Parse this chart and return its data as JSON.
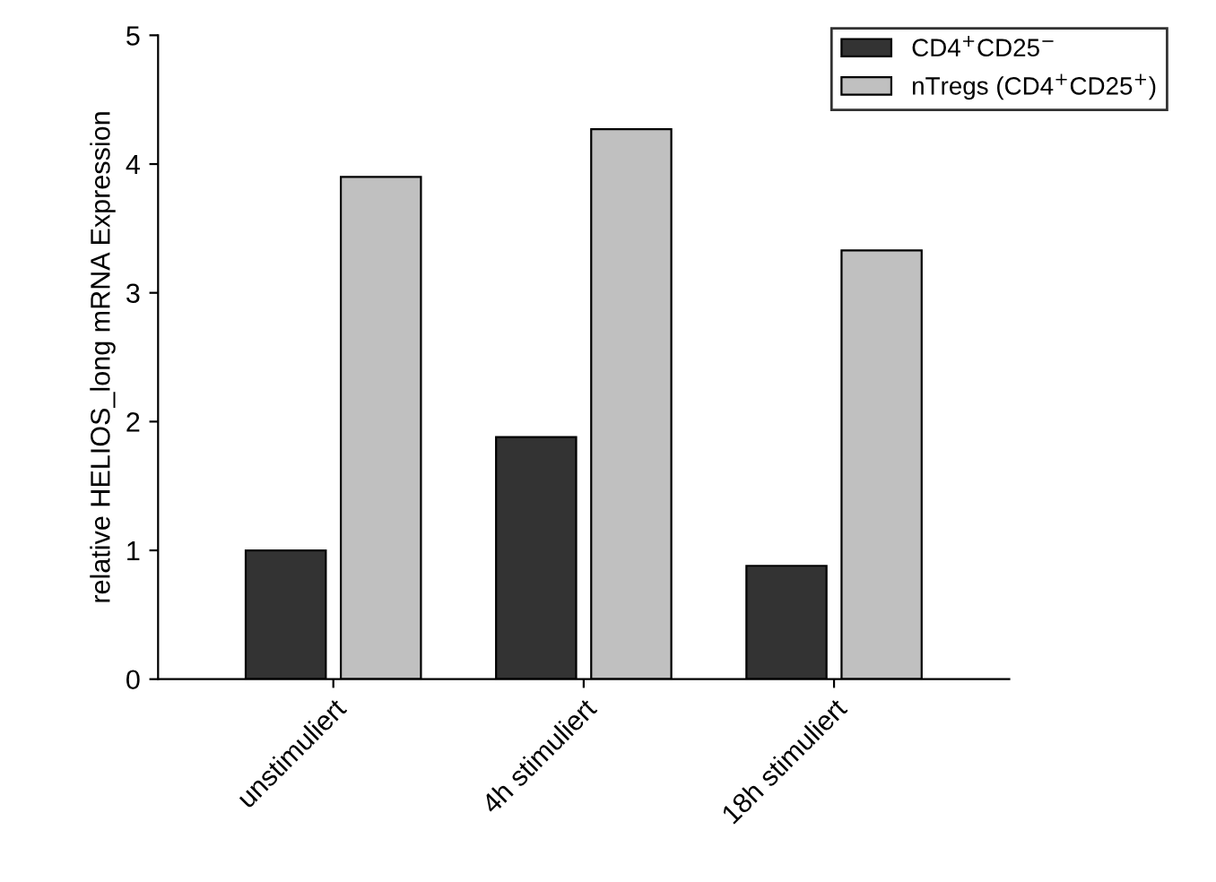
{
  "chart_data": {
    "type": "bar",
    "ylabel": "relative HELIOS_long mRNA Expression",
    "categories": [
      "unstimuliert",
      "4h stimuliert",
      "18h stimuliert"
    ],
    "series": [
      {
        "name": "CD4$^{+}$CD25$^{−}$",
        "color": "#333333",
        "values": [
          1.0,
          1.88,
          0.88
        ]
      },
      {
        "name": "nTregs (CD4$^{+}$CD25$^{+}$)",
        "color": "#c0c0c0",
        "values": [
          3.9,
          4.27,
          3.33
        ]
      }
    ],
    "ylim": [
      0,
      5
    ],
    "yticks": [
      0,
      1,
      2,
      3,
      4,
      5
    ],
    "grid": false,
    "legend": "top right"
  }
}
